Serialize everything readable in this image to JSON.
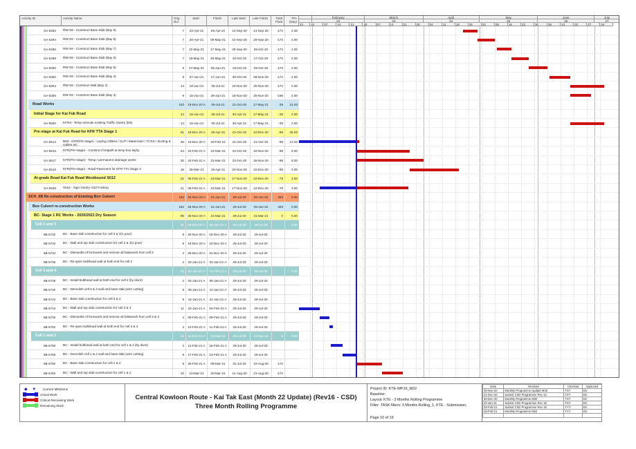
{
  "columns": {
    "id": "Activity ID",
    "name": "Activity Name",
    "dur": "Orig Dur",
    "start": "Start",
    "finish": "Finish",
    "ls": "Late Start",
    "lf": "Late Finish",
    "tf": "Total Float",
    "tfa": "TFA (Day)"
  },
  "timeline": {
    "months": [
      {
        "label": "February",
        "num": "22"
      },
      {
        "label": "March",
        "num": "23"
      },
      {
        "label": "April",
        "num": "24"
      },
      {
        "label": "May",
        "num": "25"
      },
      {
        "label": "June",
        "num": "26"
      },
      {
        "label": "July",
        "num": "27"
      }
    ],
    "weeks": [
      "24",
      "31",
      "07",
      "14",
      "21",
      "28",
      "07",
      "14",
      "21",
      "28",
      "04",
      "11",
      "18",
      "25",
      "02",
      "09",
      "16",
      "23",
      "30",
      "06",
      "13",
      "20",
      "27",
      "04"
    ],
    "data_date": "24-Feb-21"
  },
  "colors": {
    "actual": "#1a1acc",
    "critical": "#cc1111",
    "remaining": "#66dd66",
    "wbs_blue": "#cde8f4",
    "wbs_yellow": "#ffff99",
    "wbs_orange": "#f79a6e",
    "wbs_teal": "#9ccfd0"
  },
  "rows": [
    {
      "id": "SA-5292",
      "name": "RW-S9 - Construct Base Slab (Bay 9)",
      "dur": "7",
      "start": "22-Apr-21",
      "finish": "29-Apr-21",
      "ls": "14-Sep-20",
      "lf": "21-Sep-20",
      "tf": "-173",
      "tfa": "2.00"
    },
    {
      "id": "SA-5294",
      "name": "RW-S9 - Construct Base Slab (Bay 8)",
      "dur": "7",
      "start": "30-Apr-21",
      "finish": "08-May-21",
      "ls": "22-Sep-20",
      "lf": "29-Sep-20",
      "tf": "-173",
      "tfa": "2.00"
    },
    {
      "id": "SA-5296",
      "name": "RW-S9 - Construct Base Slab (Bay 7)",
      "dur": "7",
      "start": "10-May-21",
      "finish": "17-May-21",
      "ls": "30-Sep-20",
      "lf": "09-Oct-20",
      "tf": "-173",
      "tfa": "2.00"
    },
    {
      "id": "SA-5298",
      "name": "RW-S9 - Construct Base Slab (Bay 6)",
      "dur": "7",
      "start": "18-May-21",
      "finish": "26-May-21",
      "ls": "10-Oct-20",
      "lf": "17-Oct-20",
      "tf": "-173",
      "tfa": "2.00"
    },
    {
      "id": "SA-5300",
      "name": "RW-S9 - Construct Base Slab (Bay 5)",
      "dur": "9",
      "start": "27-May-21",
      "finish": "05-Jun-21",
      "ls": "19-Oct-20",
      "lf": "29-Oct-20",
      "tf": "-173",
      "tfa": "2.00"
    },
    {
      "id": "SA-5302",
      "name": "RW-S9 - Construct Base Slab (Bay 4)",
      "dur": "9",
      "start": "07-Jun-21",
      "finish": "17-Jun-21",
      "ls": "30-Oct-20",
      "lf": "09-Nov-20",
      "tf": "-173",
      "tfa": "2.00"
    },
    {
      "id": "SA-5304",
      "name": "RW-S9 - Construct Wall (Bay 4)",
      "dur": "14",
      "start": "18-Jun-21",
      "finish": "05-Jul-21",
      "ls": "10-Nov-20",
      "lf": "25-Nov-20",
      "tf": "-173",
      "tfa": "2.00"
    },
    {
      "id": "SA-5306",
      "name": "RW-S9 - Construct Base Slab (Bay 3)",
      "dur": "9",
      "start": "18-Jun-21",
      "finish": "28-Jun-21",
      "ls": "16-Nov-20",
      "lf": "25-Nov-20",
      "tf": "-168",
      "tfa": "2.00"
    },
    {
      "kind": "blue",
      "level": 1,
      "name": "Road Works",
      "dur": "153",
      "start": "19-Dec-20 A",
      "finish": "05-Jul-21",
      "ls": "21-Oct-20",
      "lf": "17-May-21",
      "tf": "-39",
      "tfa": "31.00"
    },
    {
      "kind": "yellow",
      "level": 2,
      "name": "Initial Stage for Kai Fuk Road",
      "dur": "14",
      "start": "18-Jun-21",
      "finish": "05-Jul-21",
      "ls": "30-Apr-21",
      "lf": "17-May-21",
      "tf": "-39",
      "tfa": "2.00"
    },
    {
      "id": "SA-5500",
      "name": "KFRd - Temp relocate existing Traffic Gantry (E8)",
      "dur": "14",
      "start": "18-Jun-21",
      "finish": "05-Jul-21",
      "ls": "30-Apr-21",
      "lf": "17-May-21",
      "tf": "-39",
      "tfa": "2.00"
    },
    {
      "kind": "yellow",
      "level": 2,
      "name": "Pre-stage at Kai Fuk Road for KFR TTA Stage 1",
      "dur": "91",
      "start": "19-Dec-20 A",
      "finish": "19-Apr-21",
      "ls": "21-Oct-20",
      "lf": "10-Dec-20",
      "tf": "-98",
      "tfa": "26.00"
    },
    {
      "id": "SA-5513",
      "name": "BIM - KFR(Pre-stage) - Laying Utilities / CLP / Watermain / TCSS / ducting & cables etc.",
      "dur": "48",
      "start": "19-Dec-20 A",
      "finish": "25-Feb-21",
      "ls": "21-Oct-20",
      "lf": "21-Oct-20",
      "tf": "-98",
      "tfa": "12.00"
    },
    {
      "id": "SA-5515",
      "name": "KFR(Pre-stage) - Construct footpath & temp bus layby",
      "dur": "24",
      "start": "24-Feb-21 A",
      "finish": "24-Mar-21",
      "ls": "22-Oct-20",
      "lf": "19-Nov-20",
      "tf": "-98",
      "tfa": "6.00"
    },
    {
      "id": "SA-5517",
      "name": "KFR(Pre-stage) - Temp / permanent drainage works",
      "dur": "30",
      "start": "24-Feb-21 A",
      "finish": "31-Mar-21",
      "ls": "22-Oct-20",
      "lf": "26-Nov-20",
      "tf": "-98",
      "tfa": "6.00"
    },
    {
      "id": "SA-5519",
      "name": "KFR(Pre-stage) - Road Pavement for KFR TTA Stage 3",
      "dur": "18",
      "start": "25-Mar-21",
      "finish": "19-Apr-21",
      "ls": "20-Nov-20",
      "lf": "10-Dec-20",
      "tf": "-98",
      "tfa": "2.00"
    },
    {
      "kind": "yellow",
      "level": 2,
      "name": "At-grade Road Kai Fuk Road Westbound S012",
      "dur": "21",
      "start": "05-Feb-21 A",
      "finish": "23-Mar-21",
      "ls": "17-Nov-20",
      "lf": "10-Dec-20",
      "tf": "-79",
      "tfa": "3.00"
    },
    {
      "id": "SA-5548",
      "name": "S012 - Sign Gantry G32 Footing",
      "dur": "21",
      "start": "05-Feb-21 A",
      "finish": "23-Mar-21",
      "ls": "17-Nov-20",
      "lf": "10-Dec-20",
      "tf": "-79",
      "tfa": "3.00"
    },
    {
      "kind": "orange",
      "level": 0,
      "name": "SCH_6B Re-construction of Existing Box Culvert",
      "dur": "162",
      "start": "26-Nov-20 A",
      "finish": "21-Jun-21",
      "ls": "29-Jul-20",
      "lf": "09-Jun-22",
      "tf": "283",
      "tfa": "0.00"
    },
    {
      "kind": "blue",
      "level": 1,
      "name": "Box Culvert re-construction Works",
      "dur": "162",
      "start": "26-Nov-20 A",
      "finish": "21-Jun-21",
      "ls": "29-Jul-20",
      "lf": "09-Jun-22",
      "tf": "283",
      "tfa": "0.00"
    },
    {
      "kind": "yellow",
      "level": 2,
      "name": "BC- Stage 1 RC Works - 2020/2021 Dry Season",
      "dur": "99",
      "start": "26-Nov-20 A",
      "finish": "31-Mar-21",
      "ls": "29-Jul-20",
      "lf": "31-Mar-21",
      "tf": "0",
      "tfa": "0.00"
    },
    {
      "kind": "teal",
      "level": 3,
      "name": "Cell 2 and 3",
      "dur": "31",
      "start": "26-Nov-20 A",
      "finish": "04-Jan-21 A",
      "ls": "29-Jul-20",
      "lf": "29-Jul-20",
      "tf": "",
      "tfa": "0.00"
    },
    {
      "id": "6B-5730",
      "name": "BC - Base slab construction for cell 2 & 3(1 pour)",
      "dur": "9",
      "start": "26-Nov-20 A",
      "finish": "15-Dec-20 A",
      "ls": "29-Jul-20",
      "lf": "29-Jul-20",
      "tf": "",
      "tfa": ""
    },
    {
      "id": "6B-5732",
      "name": "BC - Wall and top slab construction for cell 2 & 3(1 pour)",
      "dur": "8",
      "start": "16-Dec-20 A",
      "finish": "24-Dec-20 A",
      "ls": "29-Jul-20",
      "lf": "29-Jul-20",
      "tf": "",
      "tfa": ""
    },
    {
      "id": "6B-5734",
      "name": "BC - Dismantle of formwork and remove all falsework from cell 2",
      "dur": "4",
      "start": "28-Dec-20 A",
      "finish": "31-Dec-20 A",
      "ls": "29-Jul-20",
      "lf": "29-Jul-20",
      "tf": "",
      "tfa": ""
    },
    {
      "id": "6B-5736",
      "name": "BC - Re-open bulkhead wall at both end for cell 2",
      "dur": "2",
      "start": "02-Jan-21 A",
      "finish": "04-Jan-21 A",
      "ls": "29-Jul-20",
      "lf": "29-Jul-20",
      "tf": "",
      "tfa": ""
    },
    {
      "kind": "teal",
      "level": 3,
      "name": "Cell 3 and 4",
      "dur": "34",
      "start": "04-Jan-21 A",
      "finish": "11-Feb-21 A",
      "ls": "29-Jul-20",
      "lf": "29-Jul-20",
      "tf": "",
      "tfa": "0.00"
    },
    {
      "id": "6B-5738",
      "name": "BC - Install bulkhead wall at both end for cell 4  (by diver)",
      "dur": "2",
      "start": "04-Jan-21 A",
      "finish": "05-Jan-21 A",
      "ls": "29-Jul-20",
      "lf": "29-Jul-20",
      "tf": "",
      "tfa": ""
    },
    {
      "id": "6B-5740",
      "name": "BC - Demolish cell 3 & 4 wall and base slab (wire cutting)",
      "dur": "8",
      "start": "06-Jan-21 A",
      "finish": "14-Jan-21 A",
      "ls": "29-Jul-20",
      "lf": "29-Jul-20",
      "tf": "",
      "tfa": ""
    },
    {
      "id": "6B-5742",
      "name": "BC - Base slab construction for cell 3 & 4",
      "dur": "9",
      "start": "16-Jan-21 A",
      "finish": "21-Jan-21 A",
      "ls": "29-Jul-20",
      "lf": "29-Jul-20",
      "tf": "",
      "tfa": ""
    },
    {
      "id": "6B-5744",
      "name": "BC - Wall and top slab construction for cell 3 & 4",
      "dur": "11",
      "start": "22-Jan-21 A",
      "finish": "04-Feb-21 A",
      "ls": "29-Jul-20",
      "lf": "29-Jul-20",
      "tf": "",
      "tfa": ""
    },
    {
      "id": "6B-5746",
      "name": "BC - Dismantle of formwork and remove all falsework from cell 3 & 4",
      "dur": "4",
      "start": "05-Feb-21 A",
      "finish": "09-Feb-21 A",
      "ls": "29-Jul-20",
      "lf": "29-Jul-20",
      "tf": "",
      "tfa": ""
    },
    {
      "id": "6B-5750",
      "name": "BC - Re-open bulkhead wall at both end for cell 3 & 4",
      "dur": "2",
      "start": "10-Feb-21 A",
      "finish": "11-Feb-21 A",
      "ls": "29-Jul-20",
      "lf": "29-Jul-20",
      "tf": "",
      "tfa": ""
    },
    {
      "kind": "teal",
      "level": 3,
      "name": "Cell 1 and 2",
      "dur": "42",
      "start": "11-Feb-21 A",
      "finish": "31-Mar-21",
      "ls": "29-Jul-20",
      "lf": "31-Mar-21",
      "tf": "0",
      "tfa": "0.00"
    },
    {
      "id": "6B-5756",
      "name": "BC - Install bulkhead wall at both end for cell 1 & 2  (by diver)",
      "dur": "2",
      "start": "11-Feb-21 A",
      "finish": "16-Feb-21 A",
      "ls": "29-Jul-20",
      "lf": "29-Jul-20",
      "tf": "",
      "tfa": ""
    },
    {
      "id": "6B-5758",
      "name": "BC - Demolish cell 1 & 2 wall and base slab (wire cutting)",
      "dur": "8",
      "start": "17-Feb-21 A",
      "finish": "24-Feb-21 A",
      "ls": "29-Jul-20",
      "lf": "29-Jul-20",
      "tf": "",
      "tfa": ""
    },
    {
      "id": "6B-5760",
      "name": "BC - Base slab construction for cell 1 & 2",
      "dur": "9",
      "start": "25-Feb-21 A",
      "finish": "09-Mar-21",
      "ls": "31-Jul-20",
      "lf": "10-Aug-20",
      "tf": "-172",
      "tfa": ""
    },
    {
      "id": "6B-5762",
      "name": "BC - Wall and top slab construction for cell 1 & 2",
      "dur": "10",
      "start": "10-Mar-21",
      "finish": "20-Mar-21",
      "ls": "11-Aug-20",
      "lf": "21-Aug-20",
      "tf": "-172",
      "tfa": ""
    }
  ],
  "legend": [
    {
      "label": "Current Milestone",
      "type": "milestone"
    },
    {
      "label": "Actual Work",
      "type": "actual"
    },
    {
      "label": "Critical Remaining Work",
      "type": "critical"
    },
    {
      "label": "Remaining Work",
      "type": "remaining"
    }
  ],
  "title": {
    "line1": "Central Kowloon Route - Kai Tak East (Month 22 Update) (Rev16 - CSD)",
    "line2": "Three Month Rolling Programme"
  },
  "project": {
    "id": "Project ID: KTE-WP16_M22",
    "baseline": "Baseline:",
    "layout": "Layout: KTE - 3 Months Rolling Programme",
    "filter": "Filter: TASK filters: 3 Months Rolling_1, KTE - Submission.",
    "page": "Page 10 of 19"
  },
  "revisions": {
    "headers": [
      "Date",
      "Revision",
      "Checked",
      "Approved"
    ],
    "rows": [
      [
        "30-Nov-20",
        "Monthly Programme Update M19",
        "TST",
        "DC"
      ],
      [
        "21-Dec-20",
        "Submit CSD Programme Rev 14",
        "TST",
        "DC"
      ],
      [
        "30-Dec-20",
        "Monthly Programme M20",
        "TST",
        "DC"
      ],
      [
        "20-Jan-21",
        "Submit CSD Programme Rev 15",
        "TST",
        "DC"
      ],
      [
        "20-Feb-21",
        "Submit CSD Programme Rev 16",
        "TYY",
        "DC"
      ],
      [
        "25-Feb-21",
        "Monthly Programme M22",
        "TYY",
        "DC"
      ]
    ]
  }
}
